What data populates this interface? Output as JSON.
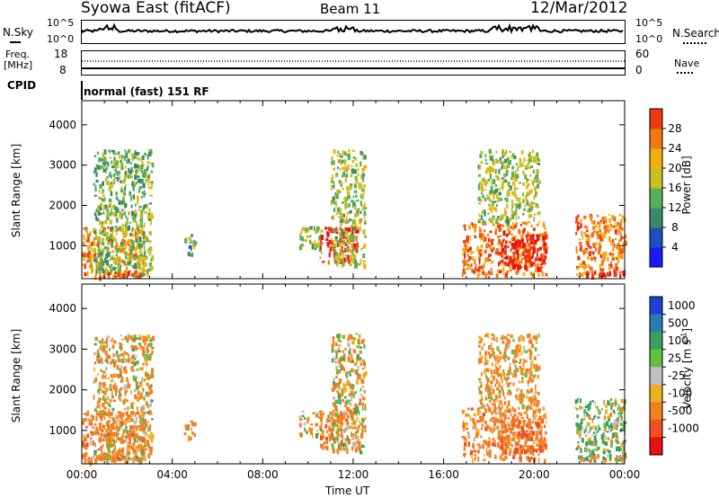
{
  "header": {
    "title": "Syowa East (fitACF)",
    "beam": "Beam 11",
    "date": "12/Mar/2012"
  },
  "top_panels": {
    "nsky_label": "N.Sky",
    "nsky_tick_top": "10^5",
    "nsky_tick_bottom": "10^0",
    "nsearch_label": "N.Search",
    "nsearch_tick_top": "10^5",
    "nsearch_tick_bottom": "10^0",
    "freq_label_1": "Freq.",
    "freq_label_2": "[MHz]",
    "freq_tick_top": "18",
    "freq_tick_bottom": "8",
    "nave_label": "Nave",
    "nave_tick_top": "60",
    "nave_tick_bottom": "0",
    "cpid_label": "CPID",
    "cpid_text": "normal (fast) 151 RF"
  },
  "colors": {
    "power_scale": [
      "#1a1aff",
      "#1f4fbf",
      "#3a8a6a",
      "#58b058",
      "#c8c020",
      "#f0b010",
      "#f07a10",
      "#ee3a10",
      "#e81010"
    ],
    "velocity_scale": [
      "#2040d0",
      "#2b7ab0",
      "#3aa060",
      "#60c040",
      "#c0c0c0",
      "#f0b020",
      "#f08020",
      "#f05020",
      "#e81010"
    ]
  },
  "chart_data": [
    {
      "type": "heatmap",
      "name": "power-panel",
      "ylabel": "Slant Range [km]",
      "xlabel": "",
      "x_ticks": [
        "00:00",
        "04:00",
        "08:00",
        "12:00",
        "16:00",
        "20:00",
        "00:00"
      ],
      "y_ticks": [
        1000,
        2000,
        3000,
        4000
      ],
      "xlim_hours": [
        0,
        24
      ],
      "ylim_km": [
        180,
        4600
      ],
      "colorbar_label": "Power [dB]",
      "colorbar_ticks": [
        "4",
        "8",
        "12",
        "16",
        "20",
        "24",
        "28"
      ],
      "colorbar_range": [
        0,
        30
      ],
      "echo_regions": [
        {
          "t0": 0.0,
          "t1": 2.8,
          "r0": 250,
          "r1": 1500,
          "value": 20
        },
        {
          "t0": 0.5,
          "t1": 3.1,
          "r0": 300,
          "r1": 3400,
          "value": 12
        },
        {
          "t0": 1.0,
          "t1": 2.6,
          "r0": 250,
          "r1": 400,
          "value": 26
        },
        {
          "t0": 4.5,
          "t1": 5.0,
          "r0": 800,
          "r1": 1300,
          "value": 10
        },
        {
          "t0": 9.6,
          "t1": 10.6,
          "r0": 900,
          "r1": 1500,
          "value": 14
        },
        {
          "t0": 10.5,
          "t1": 12.2,
          "r0": 600,
          "r1": 1500,
          "value": 26
        },
        {
          "t0": 11.0,
          "t1": 12.5,
          "r0": 500,
          "r1": 3400,
          "value": 14
        },
        {
          "t0": 16.8,
          "t1": 20.5,
          "r0": 300,
          "r1": 1600,
          "value": 22
        },
        {
          "t0": 18.5,
          "t1": 20.5,
          "r0": 500,
          "r1": 1300,
          "value": 28
        },
        {
          "t0": 17.5,
          "t1": 20.2,
          "r0": 1600,
          "r1": 3400,
          "value": 14
        },
        {
          "t0": 21.8,
          "t1": 24.0,
          "r0": 300,
          "r1": 1800,
          "value": 22
        },
        {
          "t0": 22.0,
          "t1": 24.0,
          "r0": 250,
          "r1": 400,
          "value": 26
        }
      ]
    },
    {
      "type": "heatmap",
      "name": "velocity-panel",
      "ylabel": "Slant Range [km]",
      "xlabel": "Time UT",
      "x_ticks": [
        "00:00",
        "04:00",
        "08:00",
        "12:00",
        "16:00",
        "20:00",
        "00:00"
      ],
      "y_ticks": [
        1000,
        2000,
        3000,
        4000
      ],
      "xlim_hours": [
        0,
        24
      ],
      "ylim_km": [
        180,
        4600
      ],
      "colorbar_label": "Velocity [m s-1]",
      "colorbar_ticks": [
        "1000",
        "500",
        "100",
        "25",
        "-25",
        "-100",
        "-500",
        "-1000"
      ],
      "echo_regions": [
        {
          "t0": 0.0,
          "t1": 2.8,
          "r0": 250,
          "r1": 1500,
          "value": -300
        },
        {
          "t0": 0.5,
          "t1": 3.1,
          "r0": 300,
          "r1": 3400,
          "value": -150
        },
        {
          "t0": 1.0,
          "t1": 2.6,
          "r0": 250,
          "r1": 400,
          "value": -100
        },
        {
          "t0": 4.5,
          "t1": 5.0,
          "r0": 800,
          "r1": 1300,
          "value": -200
        },
        {
          "t0": 9.6,
          "t1": 10.6,
          "r0": 900,
          "r1": 1500,
          "value": -150
        },
        {
          "t0": 10.5,
          "t1": 12.2,
          "r0": 600,
          "r1": 1500,
          "value": -300
        },
        {
          "t0": 11.0,
          "t1": 12.5,
          "r0": 500,
          "r1": 3400,
          "value": -100
        },
        {
          "t0": 16.8,
          "t1": 20.5,
          "r0": 300,
          "r1": 1600,
          "value": -300
        },
        {
          "t0": 18.5,
          "t1": 20.5,
          "r0": 500,
          "r1": 1300,
          "value": -500
        },
        {
          "t0": 17.5,
          "t1": 20.2,
          "r0": 1600,
          "r1": 3400,
          "value": -200
        },
        {
          "t0": 21.8,
          "t1": 24.0,
          "r0": 300,
          "r1": 1800,
          "value": 100
        },
        {
          "t0": 22.0,
          "t1": 24.0,
          "r0": 250,
          "r1": 400,
          "value": -100
        }
      ]
    }
  ]
}
